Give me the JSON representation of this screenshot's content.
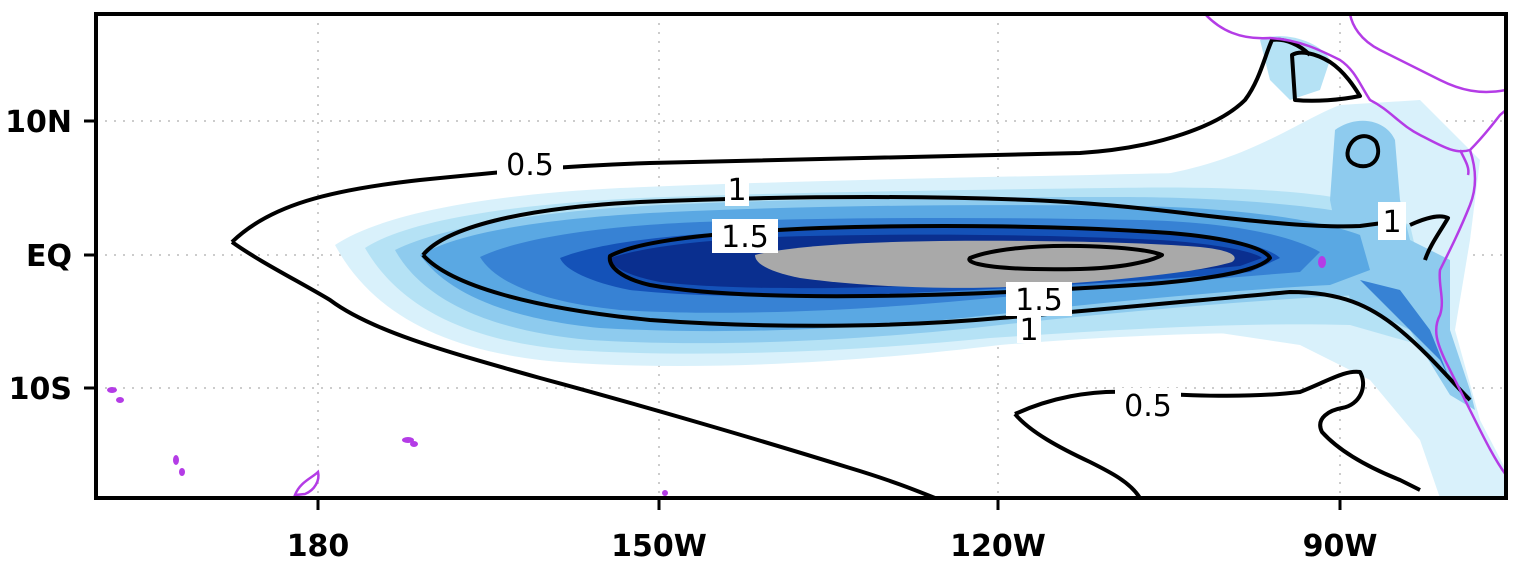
{
  "map": {
    "region": "Tropical Pacific",
    "lon_range": [
      "165E",
      "75W"
    ],
    "lat_range": [
      "17S",
      "18N"
    ],
    "x_ticks": [
      {
        "label": "180",
        "lon": 180
      },
      {
        "label": "150W",
        "lon": 210
      },
      {
        "label": "120W",
        "lon": 240
      },
      {
        "label": "90W",
        "lon": 270
      }
    ],
    "y_ticks": [
      {
        "label": "10N",
        "lat": 10
      },
      {
        "label": "EQ",
        "lat": 0
      },
      {
        "label": "10S",
        "lat": -10
      }
    ],
    "grid": true,
    "contour_levels": [
      0.5,
      1,
      1.5
    ],
    "contour_labels": [
      "0.5",
      "1",
      "1.5",
      "1.5",
      "1",
      "1",
      "0.5"
    ],
    "shading_colors": {
      "lightest": "#d9f1fb",
      "light": "#b5e2f5",
      "mid_light": "#8ecbee",
      "mid": "#5aa8e3",
      "mid_dark": "#3782d4",
      "dark": "#1452b8",
      "darkest": "#0a2f8f",
      "max": "#a9a9a9"
    },
    "coastline_color": "#b43ce6",
    "contour_color": "#000000"
  }
}
